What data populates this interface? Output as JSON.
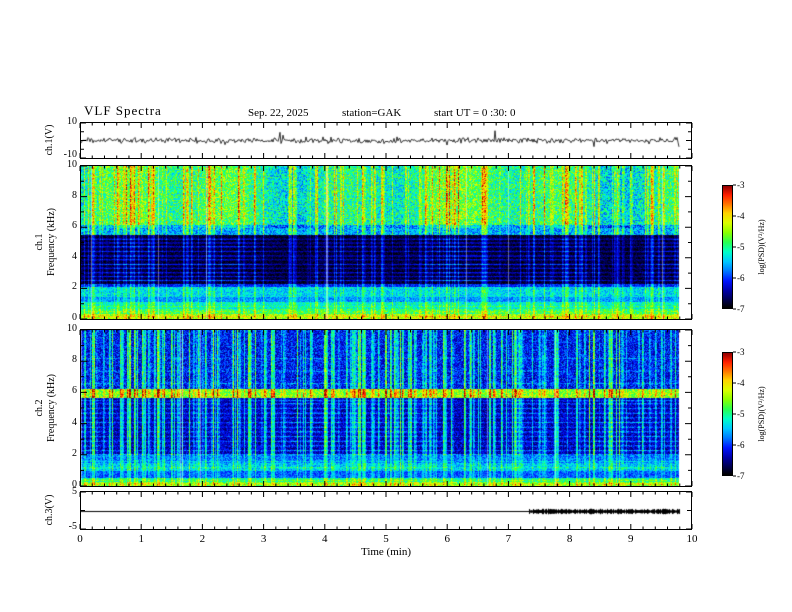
{
  "header": {
    "title": "VLF  Spectra",
    "date": "Sep. 22, 2025",
    "station": "station=GAK",
    "start_ut": "start UT =   0 :30: 0"
  },
  "axes": {
    "x": {
      "label": "Time  (min)",
      "min": 0,
      "max": 10,
      "ticks": [
        "0",
        "1",
        "2",
        "3",
        "4",
        "5",
        "6",
        "7",
        "8",
        "9",
        "10"
      ]
    },
    "ch1_wave": {
      "label": "ch.1(V)",
      "top_tick": "10",
      "bottom_tick": "-10",
      "ylim": [
        -10,
        10
      ]
    },
    "spec1": {
      "channel": "ch.1",
      "label": "Frequency (kHz)",
      "ticks": [
        "0",
        "2",
        "4",
        "6",
        "8",
        "10"
      ],
      "ylim": [
        0,
        10
      ]
    },
    "spec2": {
      "channel": "ch.2",
      "label": "Frequency (kHz)",
      "ticks": [
        "0",
        "2",
        "4",
        "6",
        "8",
        "10"
      ],
      "ylim": [
        0,
        10
      ]
    },
    "ch3": {
      "label": "ch.3(V)",
      "top_tick": "5",
      "bottom_tick": "-5",
      "ylim": [
        -5,
        5
      ]
    }
  },
  "colorbar": {
    "label": "log(PSD)(V²/Hz)",
    "ticks": [
      "-3",
      "-4",
      "-5",
      "-6",
      "-7"
    ],
    "zlim": [
      -7,
      -3
    ]
  },
  "colormap": [
    [
      0,
      "#000000"
    ],
    [
      0.06,
      "#00004a"
    ],
    [
      0.14,
      "#0000a8"
    ],
    [
      0.22,
      "#0014ff"
    ],
    [
      0.3,
      "#0078ff"
    ],
    [
      0.38,
      "#00c8ff"
    ],
    [
      0.46,
      "#00ffc8"
    ],
    [
      0.54,
      "#28ff50"
    ],
    [
      0.62,
      "#8cff00"
    ],
    [
      0.7,
      "#dcff00"
    ],
    [
      0.78,
      "#ffd200"
    ],
    [
      0.86,
      "#ff6e00"
    ],
    [
      0.93,
      "#ff1e00"
    ],
    [
      1,
      "#960000"
    ]
  ],
  "chart_data": [
    {
      "id": "ch1_waveform",
      "type": "line",
      "ylabel": "ch.1(V)",
      "xlabel": "Time (min)",
      "ylim": [
        -10,
        10
      ],
      "x_range_min": [
        0,
        9.8
      ],
      "description": "Broadband noise trace centered on 0 V, about ±2 V ripple with frequent impulsive spikes reaching about ±9 V across the full 0-9.8 min record",
      "seed": 11,
      "noise_v": 1.6,
      "spike_prob": 0.05,
      "spike_v": 9,
      "t_end": 9.8
    },
    {
      "id": "ch1_spectrogram",
      "type": "heatmap",
      "ylabel": "ch.1 Frequency (kHz)",
      "xlabel": "Time (min)",
      "ylim": [
        0,
        10
      ],
      "zlim": [
        -7,
        -3
      ],
      "t_end": 9.8,
      "description": "VLF spectrogram ch.1: bright yellow-green band below ~1 kHz with thin orange lines, cyan band 1-2 kHz, very low PSD (near -7) from 2.3-5.5 kHz crossed by narrow horizontal emission lines, speckled green/yellow region above 5.5 kHz with dense vertical impulsive streaks reaching -3.5",
      "seed": 7,
      "bands": [
        [
          0,
          0.35,
          -4.4,
          0.5
        ],
        [
          0.35,
          0.7,
          -4.9,
          0.45
        ],
        [
          0.7,
          1.15,
          -5.2,
          0.4
        ],
        [
          1.15,
          1.45,
          -5.7,
          0.3
        ],
        [
          1.45,
          2.1,
          -5.4,
          0.4
        ],
        [
          2.1,
          2.35,
          -6.1,
          0.3
        ],
        [
          2.35,
          5.5,
          -6.85,
          0.2
        ],
        [
          5.5,
          6.2,
          -5.6,
          0.5
        ],
        [
          6.2,
          10.01,
          -5.0,
          0.6
        ]
      ],
      "stripes": [
        [
          0.18,
          0.5
        ],
        [
          0.5,
          0.45
        ],
        [
          0.85,
          0.4
        ],
        [
          2.55,
          1.0
        ],
        [
          2.8,
          0.8
        ],
        [
          3.05,
          0.95
        ],
        [
          3.35,
          0.8
        ],
        [
          3.6,
          1.0
        ],
        [
          3.9,
          0.8
        ],
        [
          4.15,
          0.95
        ],
        [
          4.45,
          0.8
        ],
        [
          4.75,
          0.95
        ],
        [
          5.0,
          0.8
        ],
        [
          5.25,
          0.9
        ]
      ],
      "streaks": {
        "count": 150,
        "min": 0.3,
        "max": 1.3,
        "f_full": 5.5,
        "bleed": 0.55
      },
      "blotch_fmin": 6.0,
      "blotch_amp": 0.45,
      "white_streaks": 8
    },
    {
      "id": "ch2_spectrogram",
      "type": "heatmap",
      "ylabel": "ch.2 Frequency (kHz)",
      "xlabel": "Time (min)",
      "ylim": [
        0,
        10
      ],
      "zlim": [
        -7,
        -3
      ],
      "t_end": 9.8,
      "description": "VLF spectrogram ch.2: bright band below ~0.5 kHz, cyan band 1-2 kHz, blue background 2-5.7 kHz with many narrow horizontal lines, strong yellow-green band near 5.7-6.2 kHz with orange flecks, blue region above 6.3 kHz cut by dense vertical impulsive streaks",
      "seed": 13,
      "bands": [
        [
          0,
          0.3,
          -4.6,
          0.5
        ],
        [
          0.3,
          0.55,
          -5.1,
          0.4
        ],
        [
          0.55,
          1.0,
          -5.9,
          0.3
        ],
        [
          1.0,
          1.5,
          -5.5,
          0.4
        ],
        [
          1.5,
          2.1,
          -5.8,
          0.35
        ],
        [
          2.1,
          5.65,
          -6.4,
          0.35
        ],
        [
          5.65,
          6.25,
          -4.55,
          0.5
        ],
        [
          6.25,
          10.01,
          -6.15,
          0.45
        ]
      ],
      "stripes": [
        [
          0.15,
          0.6
        ],
        [
          0.4,
          0.5
        ],
        [
          1.2,
          0.5
        ],
        [
          1.6,
          0.4
        ],
        [
          2.3,
          0.75
        ],
        [
          2.6,
          0.6
        ],
        [
          2.9,
          0.75
        ],
        [
          3.2,
          0.6
        ],
        [
          3.5,
          0.75
        ],
        [
          3.8,
          0.6
        ],
        [
          4.1,
          0.75
        ],
        [
          4.4,
          0.6
        ],
        [
          4.7,
          0.75
        ],
        [
          5.0,
          0.6
        ],
        [
          5.3,
          0.7
        ],
        [
          5.5,
          0.6
        ],
        [
          6.6,
          0.5
        ],
        [
          7.4,
          0.4
        ],
        [
          8.2,
          0.4
        ]
      ],
      "streaks": {
        "count": 230,
        "min": 0.3,
        "max": 1.6,
        "f_full": 2.0,
        "bleed": 0.5
      },
      "blotch_fmin": 11,
      "blotch_amp": 0,
      "white_streaks": 6
    },
    {
      "id": "ch3_trace",
      "type": "line",
      "ylabel": "ch.3(V)",
      "xlabel": "Time (min)",
      "ylim": [
        -5,
        5
      ],
      "description": "Flat 0 V line from 0 to ~7.35 min, then a dense thick black 0 V band (rapid switching) from ~7.35 to ~9.8 min",
      "value_v": 0,
      "thin_end": 7.35,
      "t_end": 9.8,
      "seed": 5
    }
  ]
}
